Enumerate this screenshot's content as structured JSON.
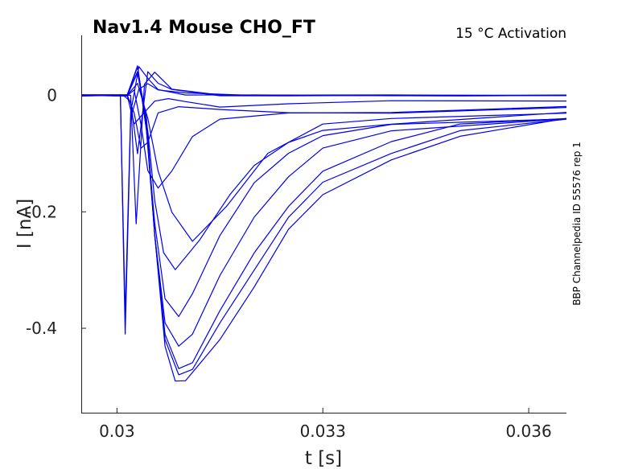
{
  "chart_data": {
    "type": "line",
    "title": "Nav1.4  Mouse  CHO_FT",
    "subtitle": "15 °C  Activation",
    "side_note": "BBP Channelpedia ID 55576 rep 1",
    "xlabel": "t [s]",
    "ylabel": "I [nA]",
    "xlim": [
      0.02948,
      0.03655
    ],
    "ylim": [
      -0.545,
      0.103
    ],
    "xticks": [
      0.03,
      0.033,
      0.036
    ],
    "xtick_labels": [
      "0.03",
      "0.033",
      "0.036"
    ],
    "yticks": [
      0,
      -0.2,
      -0.4
    ],
    "ytick_labels": [
      "0",
      "-0.2",
      "-0.4"
    ],
    "grid": false,
    "line_color": "#0000ee",
    "series": [
      {
        "x": [
          0.02948,
          0.02995,
          0.03005,
          0.03012,
          0.0302,
          0.03032,
          0.03045,
          0.0306,
          0.031,
          0.032,
          0.033,
          0.034,
          0.035,
          0.03655
        ],
        "y": [
          0,
          0,
          0,
          -0.41,
          -0.04,
          0.01,
          0.02,
          0.01,
          0.005,
          0,
          0,
          0,
          0,
          0
        ]
      },
      {
        "x": [
          0.02948,
          0.02995,
          0.03005,
          0.03012,
          0.0302,
          0.03032,
          0.03045,
          0.0306,
          0.031,
          0.032,
          0.033,
          0.034,
          0.035,
          0.03655
        ],
        "y": [
          0,
          0,
          0,
          -0.38,
          -0.03,
          0.05,
          0.03,
          0.01,
          0,
          0,
          0,
          0,
          0,
          0
        ]
      },
      {
        "x": [
          0.02948,
          0.0301,
          0.0302,
          0.03028,
          0.0304,
          0.03055,
          0.0308,
          0.0315,
          0.0325,
          0.034,
          0.035,
          0.03655
        ],
        "y": [
          0,
          0,
          0,
          -0.22,
          0.02,
          0.04,
          0.01,
          0,
          0,
          0,
          0,
          0
        ]
      },
      {
        "x": [
          0.02948,
          0.0301,
          0.0302,
          0.0303,
          0.03045,
          0.0306,
          0.0308,
          0.0315,
          0.0325,
          0.034,
          0.03655
        ],
        "y": [
          0,
          0,
          -0.01,
          -0.1,
          0.04,
          0.02,
          0.01,
          0,
          0,
          0,
          0
        ]
      },
      {
        "x": [
          0.02948,
          0.03015,
          0.03025,
          0.0304,
          0.03055,
          0.03075,
          0.031,
          0.0315,
          0.0325,
          0.034,
          0.03655
        ],
        "y": [
          0,
          0,
          -0.05,
          -0.03,
          -0.01,
          -0.005,
          -0.01,
          -0.02,
          -0.015,
          -0.01,
          -0.01
        ]
      },
      {
        "x": [
          0.02948,
          0.03015,
          0.03025,
          0.03035,
          0.03045,
          0.0306,
          0.0309,
          0.0315,
          0.0325,
          0.034,
          0.03655
        ],
        "y": [
          0,
          0,
          -0.03,
          -0.09,
          -0.08,
          -0.03,
          -0.02,
          -0.025,
          -0.03,
          -0.03,
          -0.02
        ]
      },
      {
        "x": [
          0.02948,
          0.03015,
          0.03025,
          0.03035,
          0.03045,
          0.0306,
          0.0308,
          0.0311,
          0.0315,
          0.0325,
          0.034,
          0.03655
        ],
        "y": [
          0,
          0,
          0.01,
          -0.05,
          -0.13,
          -0.16,
          -0.13,
          -0.07,
          -0.04,
          -0.03,
          -0.03,
          -0.02
        ]
      },
      {
        "x": [
          0.02948,
          0.03015,
          0.0303,
          0.03045,
          0.0306,
          0.0308,
          0.0311,
          0.0316,
          0.0322,
          0.033,
          0.034,
          0.03655
        ],
        "y": [
          0,
          0,
          0.02,
          -0.04,
          -0.13,
          -0.2,
          -0.25,
          -0.19,
          -0.1,
          -0.05,
          -0.04,
          -0.03
        ]
      },
      {
        "x": [
          0.02948,
          0.03015,
          0.0303,
          0.03045,
          0.03055,
          0.03068,
          0.03085,
          0.0312,
          0.03165,
          0.032,
          0.0325,
          0.033,
          0.034,
          0.03655
        ],
        "y": [
          0,
          0,
          0.04,
          -0.06,
          -0.18,
          -0.27,
          -0.3,
          -0.25,
          -0.17,
          -0.12,
          -0.08,
          -0.06,
          -0.05,
          -0.03
        ]
      },
      {
        "x": [
          0.02948,
          0.03015,
          0.0303,
          0.03043,
          0.03055,
          0.0307,
          0.0309,
          0.0311,
          0.0315,
          0.032,
          0.0325,
          0.033,
          0.034,
          0.03655
        ],
        "y": [
          0,
          0,
          0.05,
          -0.06,
          -0.22,
          -0.35,
          -0.38,
          -0.34,
          -0.24,
          -0.15,
          -0.1,
          -0.07,
          -0.05,
          -0.04
        ]
      },
      {
        "x": [
          0.02948,
          0.03015,
          0.0303,
          0.03043,
          0.03055,
          0.0307,
          0.0309,
          0.0311,
          0.0315,
          0.032,
          0.0325,
          0.033,
          0.034,
          0.03655
        ],
        "y": [
          0,
          0,
          0.05,
          -0.06,
          -0.24,
          -0.39,
          -0.43,
          -0.41,
          -0.31,
          -0.21,
          -0.14,
          -0.09,
          -0.06,
          -0.04
        ]
      },
      {
        "x": [
          0.02948,
          0.03015,
          0.0303,
          0.03043,
          0.03055,
          0.0307,
          0.0309,
          0.0311,
          0.0315,
          0.032,
          0.0325,
          0.033,
          0.034,
          0.035,
          0.03655
        ],
        "y": [
          0,
          0,
          0.05,
          -0.05,
          -0.24,
          -0.41,
          -0.47,
          -0.46,
          -0.37,
          -0.27,
          -0.19,
          -0.13,
          -0.08,
          -0.05,
          -0.04
        ]
      },
      {
        "x": [
          0.02948,
          0.03015,
          0.0303,
          0.03043,
          0.03055,
          0.0307,
          0.0309,
          0.0311,
          0.0315,
          0.032,
          0.0325,
          0.033,
          0.034,
          0.035,
          0.03655
        ],
        "y": [
          0,
          0,
          0.04,
          -0.04,
          -0.24,
          -0.42,
          -0.48,
          -0.47,
          -0.39,
          -0.3,
          -0.21,
          -0.15,
          -0.1,
          -0.06,
          -0.04
        ]
      },
      {
        "x": [
          0.02948,
          0.03015,
          0.0303,
          0.03043,
          0.03055,
          0.0307,
          0.03085,
          0.031,
          0.0315,
          0.032,
          0.0325,
          0.033,
          0.034,
          0.035,
          0.03655
        ],
        "y": [
          0,
          0,
          0.04,
          -0.04,
          -0.24,
          -0.43,
          -0.49,
          -0.49,
          -0.42,
          -0.33,
          -0.23,
          -0.17,
          -0.11,
          -0.07,
          -0.04
        ]
      }
    ]
  }
}
